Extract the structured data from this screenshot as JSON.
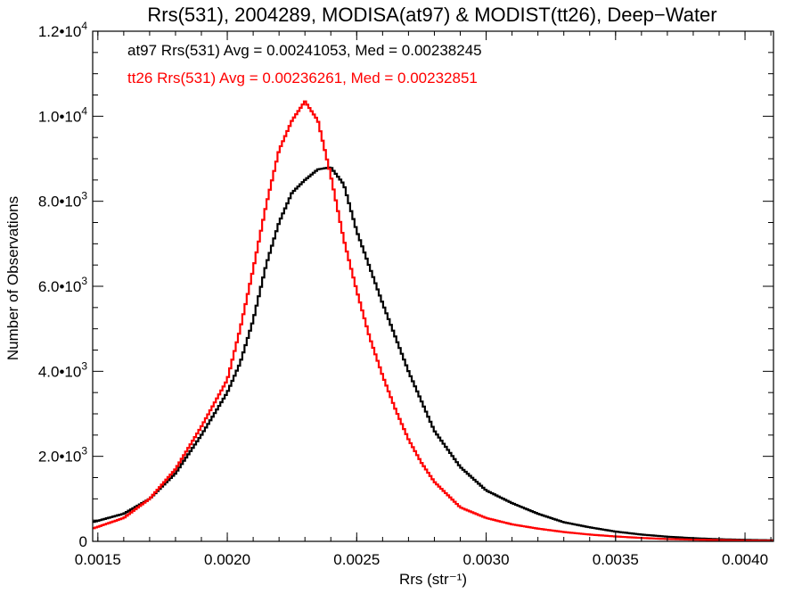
{
  "chart_data": {
    "type": "line",
    "title": "Rrs(531), 2004289, MODISA(at97) & MODIST(tt26), Deep−Water",
    "xlabel": "Rrs (str⁻¹)",
    "ylabel": "Number of Observations",
    "xlim": [
      0.00148,
      0.00411
    ],
    "ylim": [
      0,
      12000
    ],
    "grid": false,
    "x_ticks": [
      {
        "value": 0.0015,
        "label": "0.0015"
      },
      {
        "value": 0.002,
        "label": "0.0020"
      },
      {
        "value": 0.0025,
        "label": "0.0025"
      },
      {
        "value": 0.003,
        "label": "0.0030"
      },
      {
        "value": 0.0035,
        "label": "0.0035"
      },
      {
        "value": 0.004,
        "label": "0.0040"
      }
    ],
    "y_ticks": [
      {
        "value": 0,
        "mant": "0",
        "exp": ""
      },
      {
        "value": 2000,
        "mant": "2.0•10",
        "exp": "3"
      },
      {
        "value": 4000,
        "mant": "4.0•10",
        "exp": "3"
      },
      {
        "value": 6000,
        "mant": "6.0•10",
        "exp": "3"
      },
      {
        "value": 8000,
        "mant": "8.0•10",
        "exp": "3"
      },
      {
        "value": 10000,
        "mant": "1.0•10",
        "exp": "4"
      },
      {
        "value": 12000,
        "mant": "1.2•10",
        "exp": "4"
      }
    ],
    "annotations": [
      {
        "text": "at97 Rrs(531) Avg = 0.00241053, Med = 0.00238245",
        "color": "#000000"
      },
      {
        "text": "tt26 Rrs(531) Avg = 0.00236261, Med = 0.00232851",
        "color": "#ff0000"
      }
    ],
    "series": [
      {
        "color": "#000000",
        "x": [
          0.00148,
          0.0016,
          0.0017,
          0.0018,
          0.0019,
          0.002,
          0.00205,
          0.0021,
          0.00215,
          0.0022,
          0.00225,
          0.0023,
          0.00235,
          0.0024,
          0.00245,
          0.0025,
          0.00255,
          0.0026,
          0.00265,
          0.0027,
          0.00275,
          0.0028,
          0.0029,
          0.003,
          0.0031,
          0.0032,
          0.0033,
          0.0034,
          0.0035,
          0.0036,
          0.0037,
          0.0038,
          0.0039,
          0.004,
          0.00411
        ],
        "y": [
          450,
          650,
          1000,
          1600,
          2500,
          3500,
          4200,
          5200,
          6500,
          7500,
          8200,
          8500,
          8750,
          8800,
          8400,
          7300,
          6450,
          5600,
          4800,
          4000,
          3300,
          2600,
          1750,
          1200,
          900,
          650,
          450,
          330,
          230,
          160,
          110,
          75,
          50,
          35,
          25
        ]
      },
      {
        "color": "#ff0000",
        "x": [
          0.00148,
          0.0016,
          0.0017,
          0.0018,
          0.0019,
          0.002,
          0.00205,
          0.0021,
          0.00215,
          0.0022,
          0.00225,
          0.0023,
          0.00235,
          0.0024,
          0.00245,
          0.0025,
          0.00255,
          0.0026,
          0.00265,
          0.0027,
          0.00275,
          0.0028,
          0.0029,
          0.003,
          0.0031,
          0.0032,
          0.0033,
          0.0034,
          0.0035,
          0.0036,
          0.0037,
          0.0038,
          0.0039,
          0.004,
          0.00411
        ],
        "y": [
          300,
          550,
          1000,
          1700,
          2700,
          3800,
          5000,
          6400,
          7900,
          9200,
          9900,
          10350,
          9900,
          8600,
          7100,
          5900,
          4800,
          3900,
          3100,
          2400,
          1850,
          1400,
          800,
          550,
          400,
          300,
          220,
          160,
          115,
          80,
          55,
          40,
          30,
          20,
          15
        ]
      }
    ]
  }
}
